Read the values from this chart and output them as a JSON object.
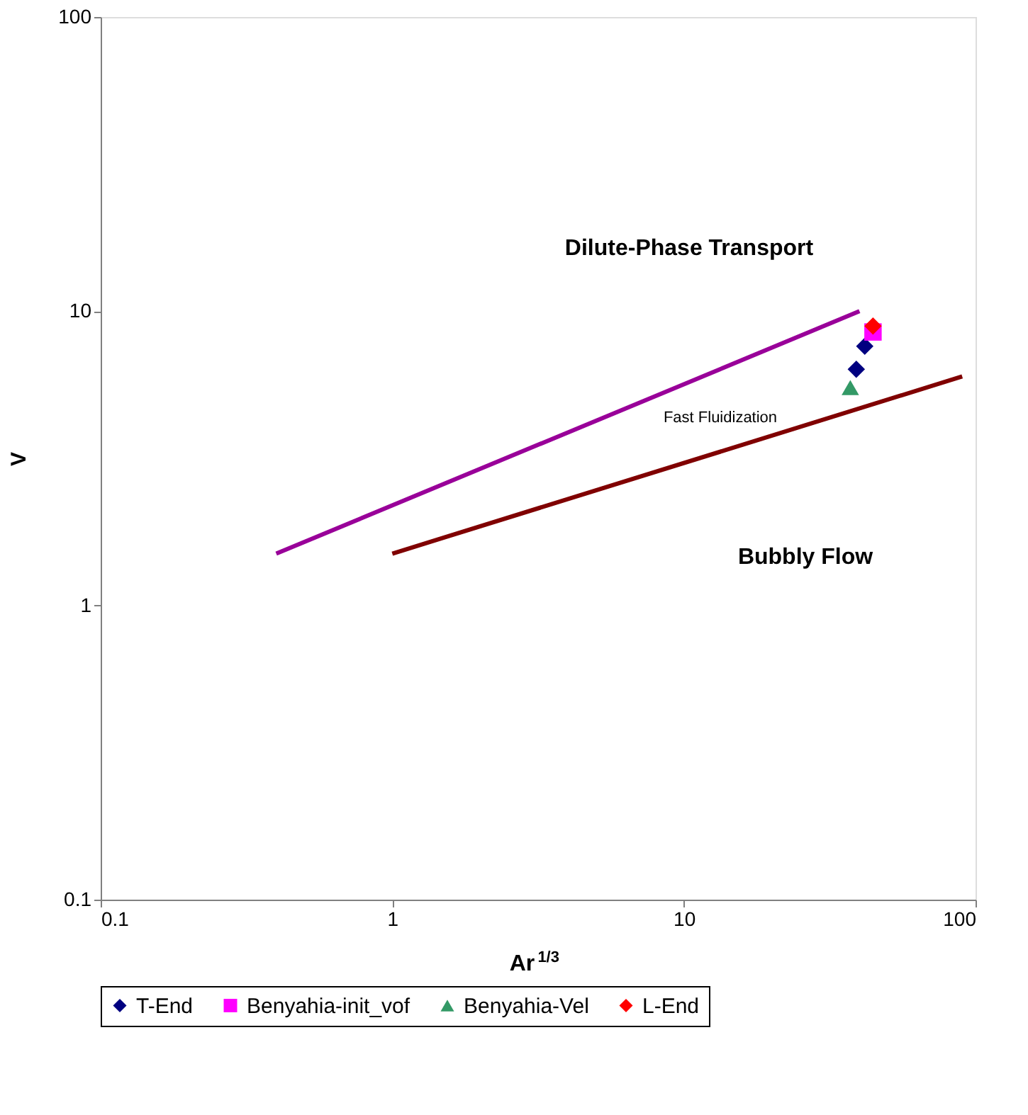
{
  "chart_data": {
    "type": "scatter",
    "xlabel": "Ar$^{1/3}$",
    "ylabel": "V",
    "log": "xy",
    "grid": false,
    "legend": "bottom",
    "xlim": [
      0.1,
      100
    ],
    "xticks": [
      0.1,
      1,
      10,
      100
    ],
    "ylim": [
      0.1,
      100
    ],
    "yticks": [
      0.1,
      1,
      10,
      100
    ],
    "series": [
      {
        "type": "line",
        "color": "#990099",
        "x": [
          0.4,
          40
        ],
        "values": [
          1.5,
          10
        ]
      },
      {
        "type": "line",
        "color": "#800000",
        "x": [
          1.0,
          90
        ],
        "values": [
          1.5,
          6
        ]
      },
      {
        "name": "T-End",
        "color": "#000080",
        "marker": "diamond",
        "x": [
          41.7,
          39
        ],
        "values": [
          7.6,
          6.35
        ]
      },
      {
        "name": "Benyahia-init_vof",
        "color": "#ff00ff",
        "marker": "square",
        "x": [
          44.5
        ],
        "values": [
          8.5
        ]
      },
      {
        "name": "Benyahia-Vel",
        "color": "#339966",
        "marker": "triangle",
        "x": [
          37.2
        ],
        "values": [
          5.5
        ]
      },
      {
        "name": "L-End",
        "color": "#ff0000",
        "marker": "diamond",
        "x": [
          44.5
        ],
        "values": [
          8.9
        ]
      }
    ],
    "annotations": [
      "Dilute-Phase Transport",
      "Fast Fluidization",
      "Bubbly Flow"
    ]
  }
}
